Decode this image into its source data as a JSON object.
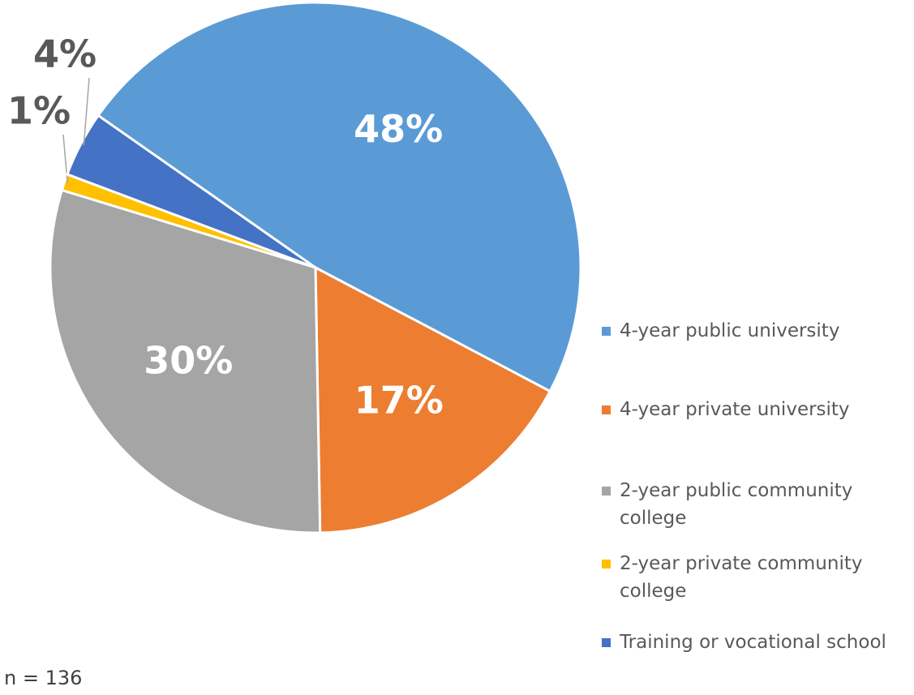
{
  "chart_data": {
    "type": "pie",
    "categories": [
      "4-year public university",
      "4-year private university",
      "2-year public community college",
      "2-year private community college",
      "Training or vocational school"
    ],
    "values": [
      48,
      17,
      30,
      1,
      4
    ],
    "value_labels": [
      "48%",
      "17%",
      "30%",
      "1%",
      "4%"
    ],
    "colors": [
      "#5b9bd5",
      "#ed7d31",
      "#a5a5a5",
      "#ffc000",
      "#4472c4"
    ],
    "legend": "right",
    "note": "n = 136"
  }
}
